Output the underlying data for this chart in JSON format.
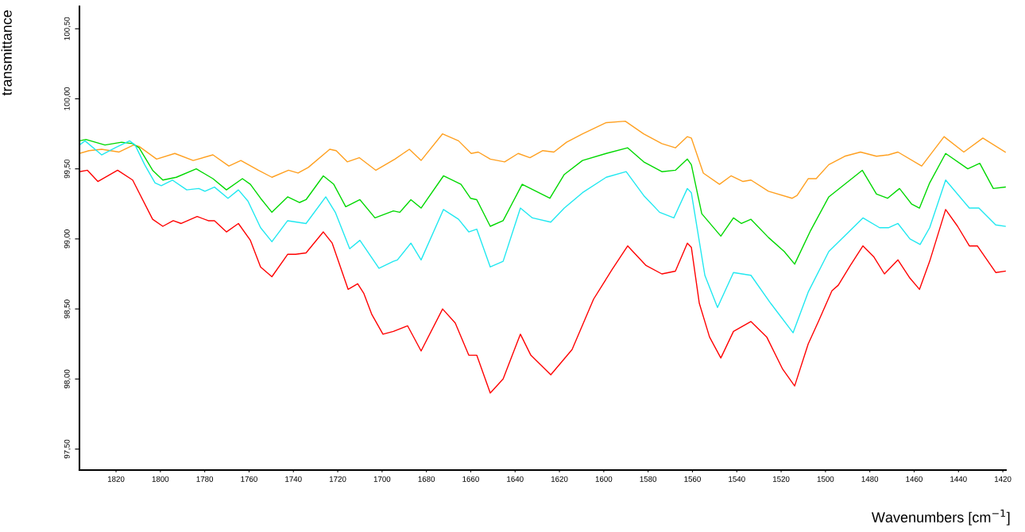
{
  "chart_data": {
    "type": "line",
    "xlabel": "Wavenumbers [cm$^{−1}$]",
    "ylabel": "transmittance",
    "xlim": [
      1836.5,
      1418.6
    ],
    "xticks": [
      1820,
      1800,
      1780,
      1760,
      1740,
      1720,
      1700,
      1680,
      1660,
      1640,
      1620,
      1600,
      1580,
      1560,
      1540,
      1520,
      1500,
      1480,
      1460,
      1440,
      1420
    ],
    "ylim": [
      97.35,
      100.66
    ],
    "yticks": [
      {
        "value": 97.5,
        "label": "97,50"
      },
      {
        "value": 98.0,
        "label": "98,00"
      },
      {
        "value": 98.5,
        "label": "98,50"
      },
      {
        "value": 99.0,
        "label": "99,00"
      },
      {
        "value": 99.5,
        "label": "99,50"
      },
      {
        "value": 100.0,
        "label": "100,00"
      },
      {
        "value": 100.5,
        "label": "100,50"
      }
    ],
    "grid": false,
    "line_style": "solid",
    "marker": "none",
    "series": [
      {
        "color": "#ffa020",
        "x": [
          1836.5,
          1832.2,
          1826.5,
          1818.6,
          1812.1,
          1809.6,
          1801.7,
          1793.5,
          1785.2,
          1776.3,
          1769.1,
          1763.7,
          1755.8,
          1749.7,
          1742.2,
          1737.9,
          1733.3,
          1723.6,
          1720.7,
          1715.7,
          1710.3,
          1702.8,
          1694.2,
          1687.7,
          1682.4,
          1672.7,
          1665.5,
          1659.8,
          1656.6,
          1651.2,
          1644.7,
          1638.6,
          1633.3,
          1627.5,
          1622.5,
          1616.8,
          1609.6,
          1598.9,
          1590.3,
          1582.0,
          1573.8,
          1567.7,
          1562.3,
          1560.5,
          1555.1,
          1547.8,
          1542.6,
          1537.2,
          1533.6,
          1525.7,
          1515.0,
          1512.8,
          1507.8,
          1504.2,
          1498.5,
          1491.3,
          1484.2,
          1477.0,
          1471.6,
          1467.3,
          1456.6,
          1446.5,
          1437.6,
          1429.0,
          1418.9
        ],
        "values": [
          99.61,
          99.63,
          99.64,
          99.62,
          99.67,
          99.66,
          99.57,
          99.61,
          99.56,
          99.6,
          99.52,
          99.56,
          99.49,
          99.44,
          99.49,
          99.47,
          99.51,
          99.64,
          99.63,
          99.55,
          99.58,
          99.49,
          99.57,
          99.64,
          99.56,
          99.75,
          99.7,
          99.61,
          99.62,
          99.57,
          99.55,
          99.61,
          99.58,
          99.63,
          99.62,
          99.69,
          99.75,
          99.83,
          99.84,
          99.75,
          99.68,
          99.65,
          99.73,
          99.72,
          99.47,
          99.39,
          99.45,
          99.41,
          99.42,
          99.34,
          99.29,
          99.31,
          99.43,
          99.43,
          99.53,
          99.59,
          99.62,
          99.59,
          99.6,
          99.62,
          99.52,
          99.73,
          99.62,
          99.72,
          99.62
        ]
      },
      {
        "color": "#00d800",
        "x": [
          1836.5,
          1833.6,
          1825.0,
          1817.5,
          1812.5,
          1809.6,
          1803.5,
          1798.9,
          1792.8,
          1783.8,
          1776.3,
          1770.2,
          1763.0,
          1759.4,
          1754.8,
          1749.7,
          1742.6,
          1737.2,
          1734.3,
          1726.5,
          1721.8,
          1716.4,
          1710.0,
          1703.2,
          1694.9,
          1692.0,
          1687.0,
          1682.4,
          1672.3,
          1664.4,
          1660.1,
          1657.3,
          1651.2,
          1645.4,
          1636.8,
          1624.3,
          1617.8,
          1609.6,
          1598.9,
          1589.2,
          1582.0,
          1573.8,
          1567.7,
          1562.3,
          1560.5,
          1555.8,
          1547.2,
          1541.5,
          1537.9,
          1533.6,
          1525.7,
          1518.6,
          1513.9,
          1506.7,
          1498.5,
          1483.4,
          1477.0,
          1472.0,
          1466.6,
          1461.2,
          1457.6,
          1453.0,
          1445.8,
          1435.8,
          1430.4,
          1424.3,
          1418.9
        ],
        "values": [
          99.7,
          99.71,
          99.67,
          99.69,
          99.68,
          99.65,
          99.49,
          99.42,
          99.44,
          99.5,
          99.43,
          99.35,
          99.43,
          99.39,
          99.29,
          99.19,
          99.3,
          99.26,
          99.28,
          99.45,
          99.39,
          99.23,
          99.28,
          99.15,
          99.2,
          99.19,
          99.28,
          99.22,
          99.45,
          99.39,
          99.29,
          99.28,
          99.09,
          99.13,
          99.39,
          99.29,
          99.46,
          99.56,
          99.61,
          99.65,
          99.55,
          99.48,
          99.49,
          99.57,
          99.53,
          99.18,
          99.02,
          99.15,
          99.11,
          99.14,
          99.01,
          98.91,
          98.82,
          99.06,
          99.3,
          99.49,
          99.32,
          99.29,
          99.36,
          99.25,
          99.22,
          99.4,
          99.61,
          99.5,
          99.54,
          99.36,
          99.37
        ]
      },
      {
        "color": "#20e8f0",
        "x": [
          1836.5,
          1834.0,
          1826.5,
          1820.4,
          1813.9,
          1811.4,
          1807.1,
          1802.4,
          1799.6,
          1794.6,
          1788.1,
          1782.7,
          1779.9,
          1775.6,
          1769.5,
          1764.8,
          1760.5,
          1754.8,
          1749.7,
          1742.6,
          1734.3,
          1725.4,
          1721.1,
          1714.6,
          1710.0,
          1701.4,
          1694.9,
          1693.1,
          1687.0,
          1682.4,
          1672.3,
          1665.5,
          1660.9,
          1657.3,
          1651.2,
          1645.4,
          1637.6,
          1632.2,
          1623.9,
          1617.8,
          1609.6,
          1598.9,
          1589.9,
          1582.0,
          1574.8,
          1568.4,
          1562.3,
          1560.5,
          1554.4,
          1548.7,
          1541.5,
          1533.6,
          1524.7,
          1514.6,
          1507.8,
          1498.5,
          1483.1,
          1475.6,
          1471.6,
          1467.3,
          1461.9,
          1457.3,
          1453.0,
          1445.8,
          1435.1,
          1430.8,
          1423.2,
          1418.9
        ],
        "values": [
          99.67,
          99.7,
          99.6,
          99.65,
          99.7,
          99.67,
          99.53,
          99.4,
          99.38,
          99.42,
          99.35,
          99.36,
          99.34,
          99.37,
          99.29,
          99.35,
          99.27,
          99.08,
          98.98,
          99.13,
          99.11,
          99.3,
          99.19,
          98.93,
          98.99,
          98.79,
          98.84,
          98.85,
          98.97,
          98.85,
          99.21,
          99.14,
          99.05,
          99.07,
          98.8,
          98.84,
          99.22,
          99.15,
          99.12,
          99.22,
          99.33,
          99.44,
          99.48,
          99.31,
          99.19,
          99.15,
          99.36,
          99.33,
          98.74,
          98.51,
          98.76,
          98.74,
          98.54,
          98.33,
          98.62,
          98.91,
          99.15,
          99.08,
          99.08,
          99.11,
          99.0,
          98.96,
          99.08,
          99.42,
          99.22,
          99.22,
          99.1,
          99.09
        ]
      },
      {
        "color": "#ff0000",
        "x": [
          1836.5,
          1832.9,
          1828.2,
          1819.3,
          1812.5,
          1803.5,
          1798.9,
          1794.2,
          1790.6,
          1783.4,
          1778.4,
          1775.6,
          1770.2,
          1764.8,
          1759.4,
          1754.8,
          1749.7,
          1742.6,
          1739.0,
          1734.3,
          1726.5,
          1722.5,
          1715.3,
          1711.0,
          1708.2,
          1704.6,
          1699.6,
          1694.9,
          1688.5,
          1682.4,
          1672.7,
          1667.0,
          1660.9,
          1657.3,
          1651.2,
          1645.4,
          1637.6,
          1632.9,
          1623.9,
          1614.3,
          1604.6,
          1596.3,
          1589.2,
          1580.9,
          1573.8,
          1567.7,
          1562.3,
          1560.5,
          1556.9,
          1552.3,
          1547.2,
          1541.5,
          1533.6,
          1526.5,
          1519.3,
          1513.9,
          1507.8,
          1503.2,
          1497.1,
          1494.2,
          1488.8,
          1483.1,
          1478.1,
          1473.4,
          1467.3,
          1461.9,
          1457.6,
          1453.0,
          1445.8,
          1440.4,
          1435.1,
          1431.5,
          1423.2,
          1418.9
        ],
        "values": [
          99.48,
          99.49,
          99.41,
          99.49,
          99.42,
          99.14,
          99.09,
          99.13,
          99.11,
          99.16,
          99.13,
          99.13,
          99.05,
          99.11,
          98.99,
          98.8,
          98.73,
          98.89,
          98.89,
          98.9,
          99.05,
          98.97,
          98.64,
          98.68,
          98.61,
          98.46,
          98.32,
          98.34,
          98.38,
          98.2,
          98.5,
          98.4,
          98.17,
          98.17,
          97.9,
          98.0,
          98.32,
          98.17,
          98.03,
          98.21,
          98.57,
          98.78,
          98.95,
          98.81,
          98.75,
          98.77,
          98.97,
          98.94,
          98.54,
          98.3,
          98.15,
          98.34,
          98.41,
          98.3,
          98.07,
          97.95,
          98.25,
          98.41,
          98.63,
          98.67,
          98.81,
          98.95,
          98.87,
          98.75,
          98.85,
          98.72,
          98.64,
          98.84,
          99.21,
          99.09,
          98.95,
          98.95,
          98.76,
          98.77
        ]
      }
    ]
  }
}
